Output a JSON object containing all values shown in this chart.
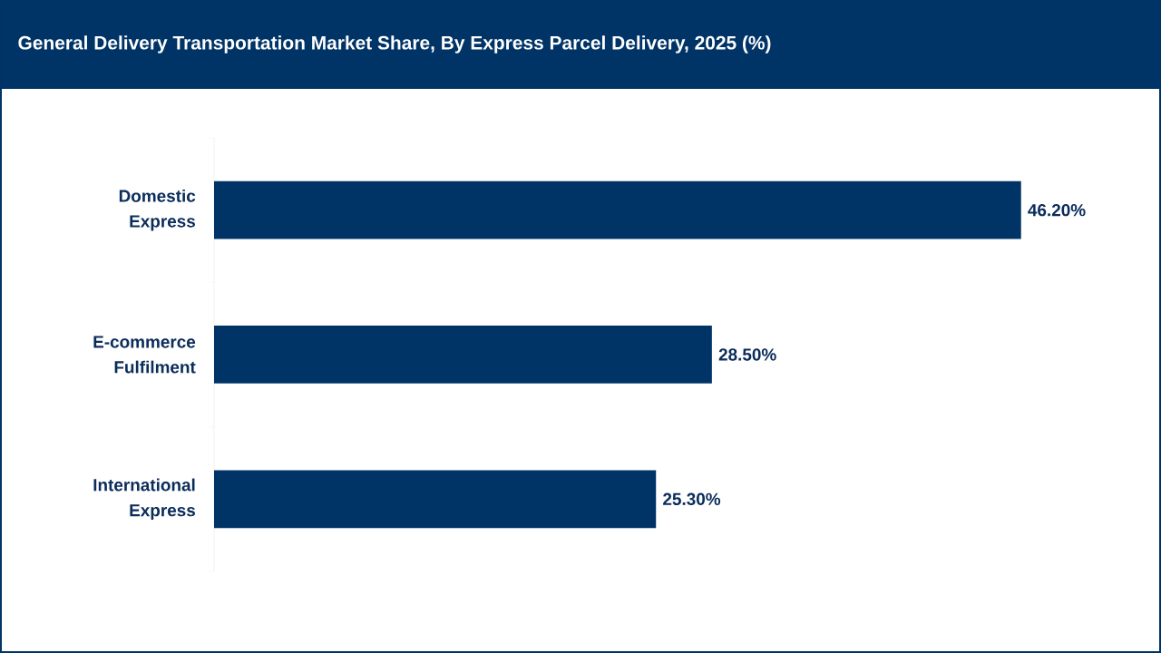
{
  "chart_data": {
    "type": "bar",
    "orientation": "horizontal",
    "title": "General Delivery Transportation Market Share, By Express Parcel Delivery, 2025 (%)",
    "categories": [
      "Domestic Express",
      "E-commerce Fulfilment",
      "International Express"
    ],
    "values": [
      46.2,
      28.5,
      25.3
    ],
    "value_labels": [
      "46.20%",
      "28.50%",
      "25.30%"
    ],
    "color": "#003366"
  }
}
